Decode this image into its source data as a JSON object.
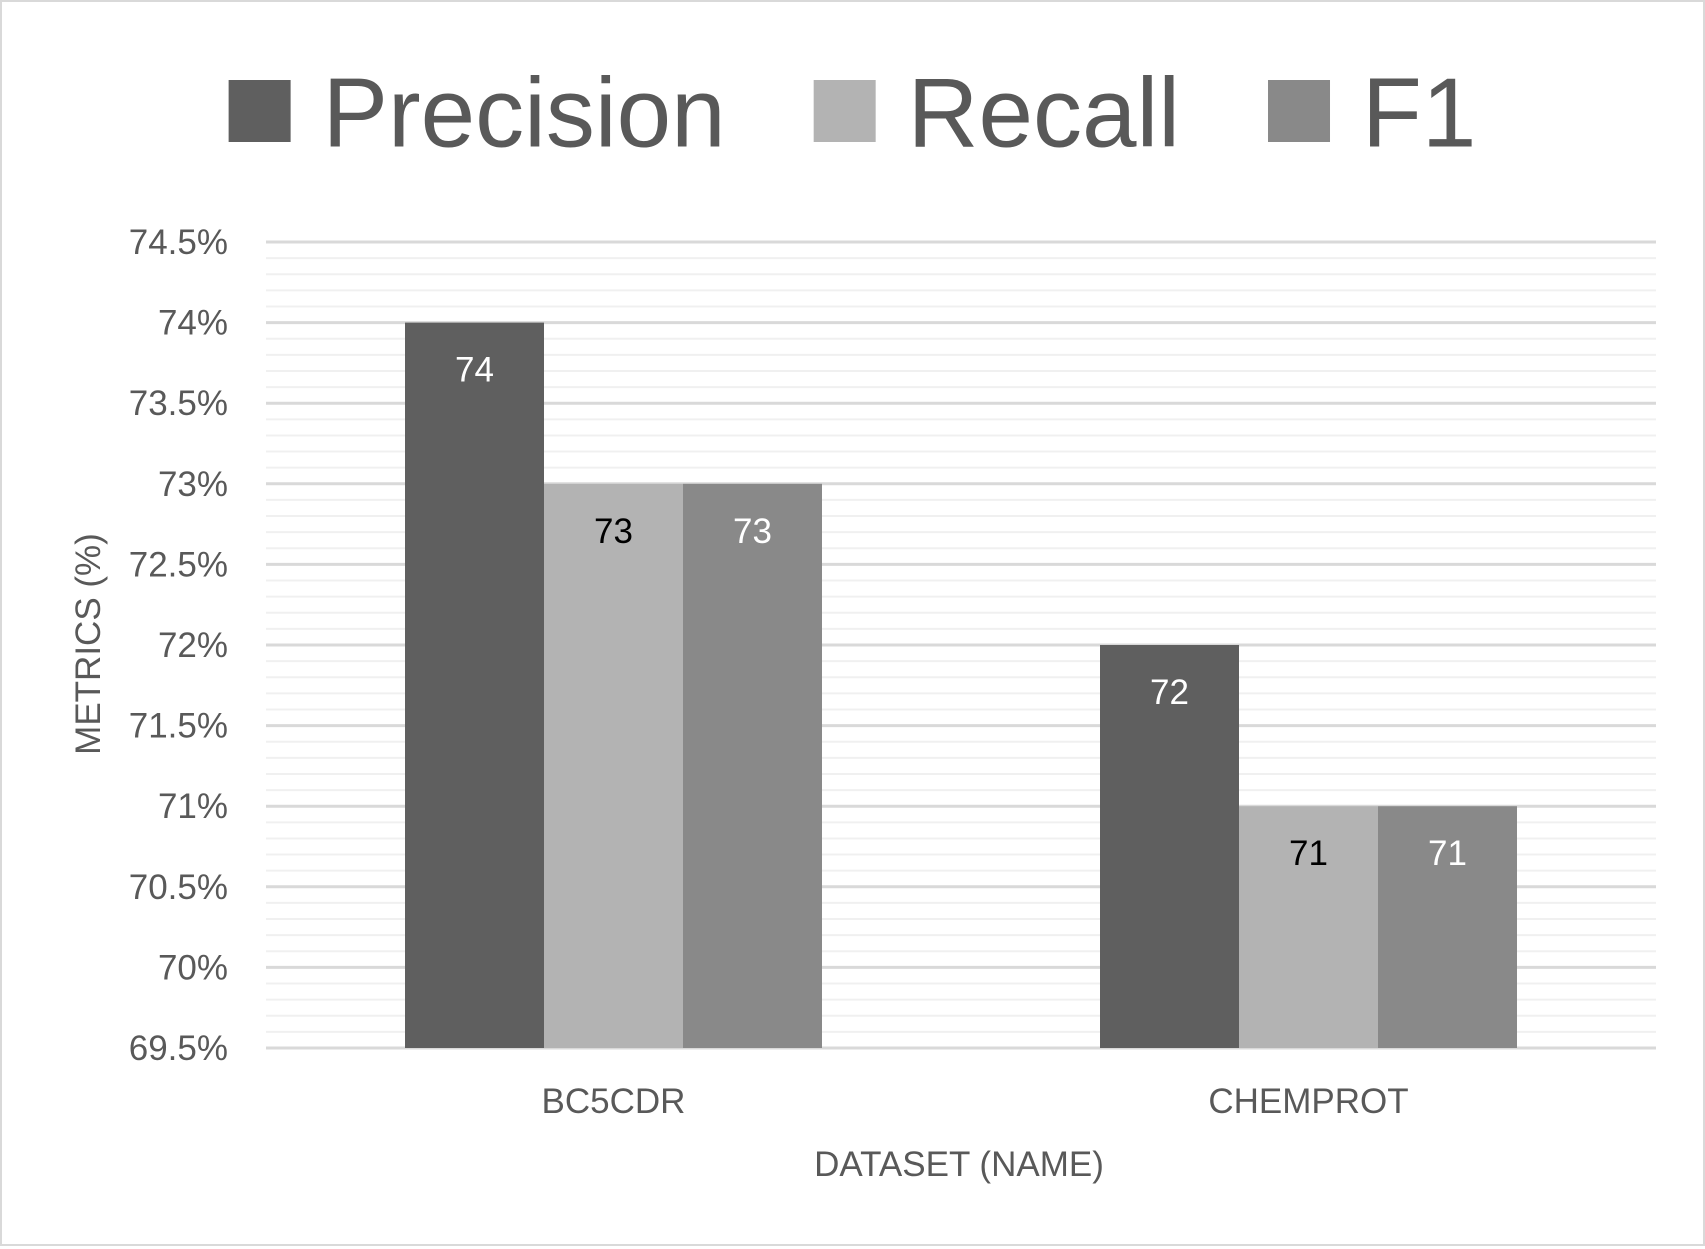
{
  "chart_data": {
    "type": "bar",
    "categories": [
      "BC5CDR",
      "CHEMPROT"
    ],
    "series": [
      {
        "name": "Precision",
        "values": [
          74,
          72
        ],
        "color": "#5f5f5f",
        "label_color": "#ffffff"
      },
      {
        "name": "Recall",
        "values": [
          73,
          71
        ],
        "color": "#b3b3b3",
        "label_color": "#000000"
      },
      {
        "name": "F1",
        "values": [
          73,
          71
        ],
        "color": "#898989",
        "label_color": "#ffffff"
      }
    ],
    "xlabel": "DATASET (NAME)",
    "ylabel": "METRICS (%)",
    "ylim": [
      69.5,
      74.5
    ],
    "yticks": [
      69.5,
      70,
      70.5,
      71,
      71.5,
      72,
      72.5,
      73,
      73.5,
      74,
      74.5
    ],
    "ytick_labels": [
      "69.5%",
      "70%",
      "70.5%",
      "71%",
      "71.5%",
      "72%",
      "72.5%",
      "73%",
      "73.5%",
      "74%",
      "74.5%"
    ],
    "grid": true,
    "legend_position": "top"
  }
}
